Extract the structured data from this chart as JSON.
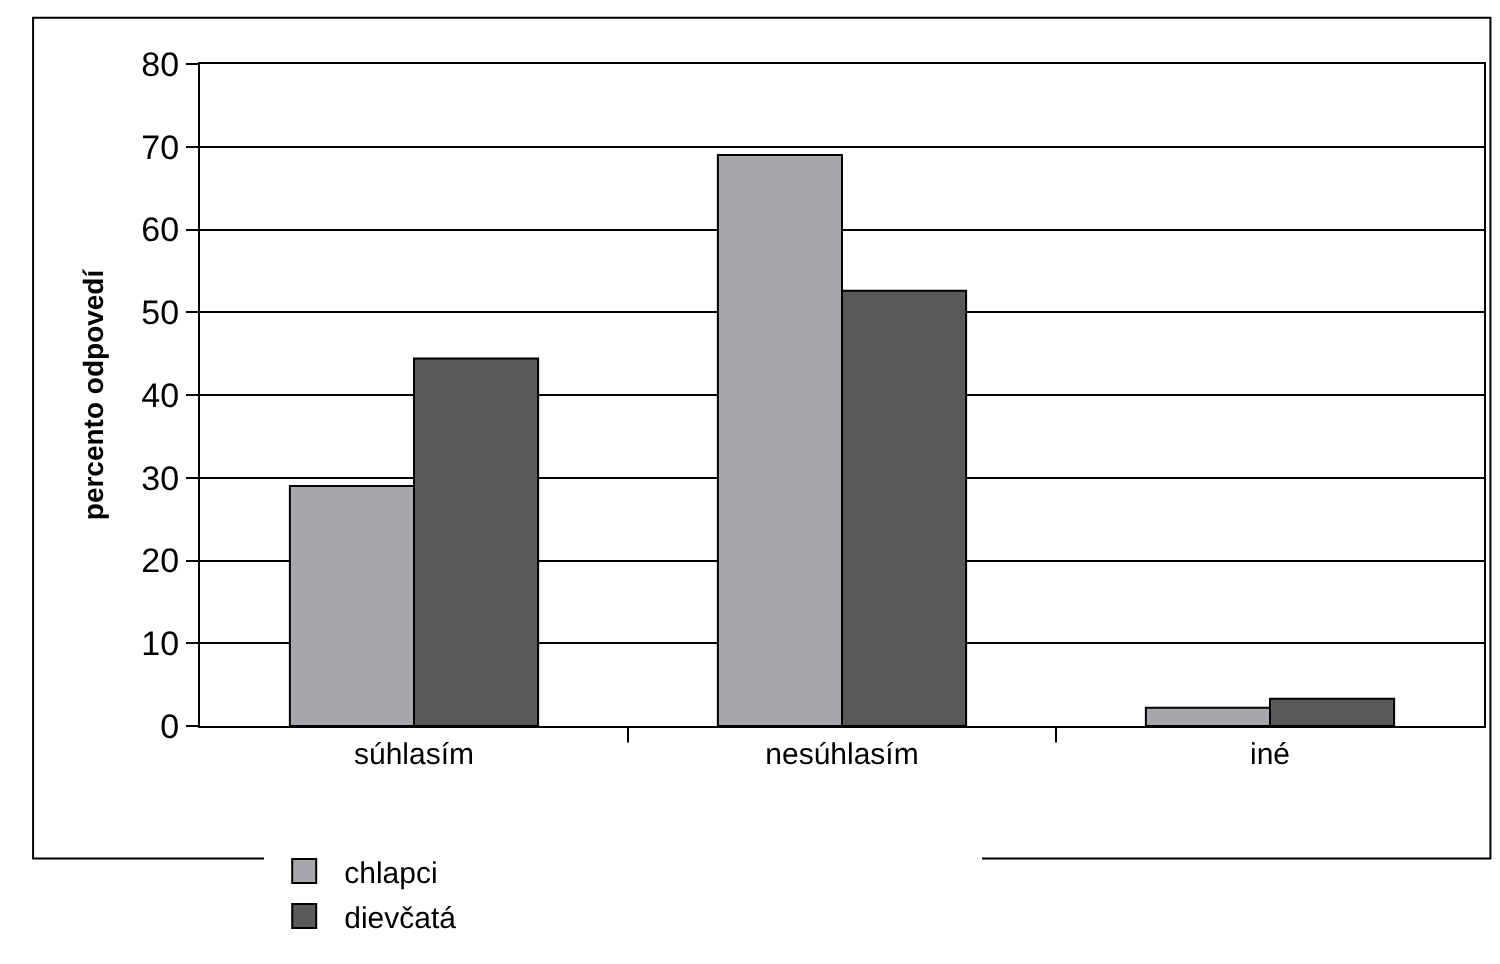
{
  "chart_data": {
    "type": "bar",
    "ylabel": "percento odpovedí",
    "categories": [
      "súhlasím",
      "nesúhlasím",
      "iné"
    ],
    "series": [
      {
        "name": "chlapci",
        "color": "#a6a7ab",
        "values": [
          29,
          69,
          2.2
        ]
      },
      {
        "name": "dievčatá",
        "color": "#58595b",
        "values": [
          44.4,
          52.6,
          3.3
        ]
      }
    ],
    "ylim": [
      0,
      80
    ],
    "yticks": [
      0,
      10,
      20,
      30,
      40,
      50,
      60,
      70,
      80
    ],
    "grid": "y",
    "legend": "bottom"
  }
}
